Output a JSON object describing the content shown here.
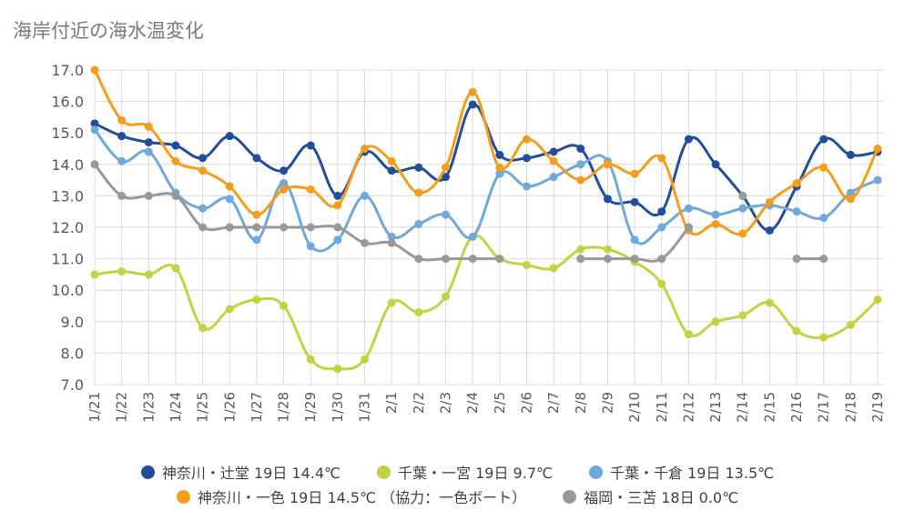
{
  "chart_data": {
    "type": "line",
    "title": "海岸付近の海水温変化",
    "xlabel": "",
    "ylabel": "",
    "ylim": [
      7.0,
      17.0
    ],
    "yticks": [
      "7.0",
      "8.0",
      "9.0",
      "10.0",
      "11.0",
      "12.0",
      "13.0",
      "14.0",
      "15.0",
      "16.0",
      "17.0"
    ],
    "categories": [
      "1/21",
      "1/22",
      "1/23",
      "1/24",
      "1/25",
      "1/26",
      "1/27",
      "1/28",
      "1/29",
      "1/30",
      "1/31",
      "2/1",
      "2/2",
      "2/3",
      "2/4",
      "2/5",
      "2/6",
      "2/7",
      "2/8",
      "2/9",
      "2/10",
      "2/11",
      "2/12",
      "2/13",
      "2/14",
      "2/15",
      "2/16",
      "2/17",
      "2/18",
      "2/19"
    ],
    "grid": true,
    "legend_position": "bottom",
    "series": [
      {
        "name": "神奈川・辻堂 19日 14.4℃",
        "color": "#1f4e9c",
        "values": [
          15.3,
          14.9,
          14.7,
          14.6,
          14.2,
          14.9,
          14.2,
          13.8,
          14.6,
          13.0,
          14.4,
          13.8,
          13.9,
          13.6,
          15.9,
          14.3,
          14.2,
          14.4,
          14.5,
          12.9,
          12.8,
          12.5,
          14.8,
          14.0,
          13.0,
          11.9,
          13.3,
          14.8,
          14.3,
          14.4
        ]
      },
      {
        "name": "千葉・一宮 19日 9.7℃",
        "color": "#c5d142",
        "values": [
          10.5,
          10.6,
          10.5,
          10.7,
          8.8,
          9.4,
          9.7,
          9.5,
          7.8,
          7.5,
          7.8,
          9.6,
          9.3,
          9.8,
          11.7,
          11.0,
          10.8,
          10.7,
          11.3,
          11.3,
          10.9,
          10.2,
          8.6,
          9.0,
          9.2,
          9.6,
          8.7,
          8.5,
          8.9,
          9.7
        ]
      },
      {
        "name": "千葉・千倉 19日 13.5℃",
        "color": "#6fa8dc",
        "values": [
          15.1,
          14.1,
          14.4,
          13.1,
          12.6,
          12.9,
          11.6,
          13.4,
          11.4,
          11.6,
          13.0,
          11.7,
          12.1,
          12.4,
          11.7,
          13.7,
          13.3,
          13.6,
          14.0,
          14.1,
          11.6,
          12.0,
          12.6,
          12.4,
          12.6,
          12.7,
          12.5,
          12.3,
          13.1,
          13.5
        ]
      },
      {
        "name": "神奈川・一色 19日 14.5℃ （協力：一色ボート）",
        "color": "#f59c1a",
        "values": [
          17.0,
          15.4,
          15.2,
          14.1,
          13.8,
          13.3,
          12.4,
          13.2,
          13.2,
          12.7,
          14.5,
          14.1,
          13.1,
          13.9,
          16.3,
          13.9,
          14.8,
          14.1,
          13.5,
          14.0,
          13.7,
          14.2,
          11.9,
          12.1,
          11.8,
          12.8,
          13.4,
          13.9,
          12.9,
          14.5
        ]
      },
      {
        "name": "福岡・三苫 18日 0.0℃",
        "color": "#999999",
        "values": [
          14.0,
          13.0,
          13.0,
          13.0,
          12.0,
          12.0,
          12.0,
          12.0,
          12.0,
          12.0,
          11.5,
          11.5,
          11.0,
          11.0,
          11.0,
          11.0,
          null,
          null,
          11.0,
          11.0,
          11.0,
          11.0,
          12.0,
          null,
          13.0,
          null,
          11.0,
          11.0,
          null,
          null
        ]
      }
    ]
  }
}
